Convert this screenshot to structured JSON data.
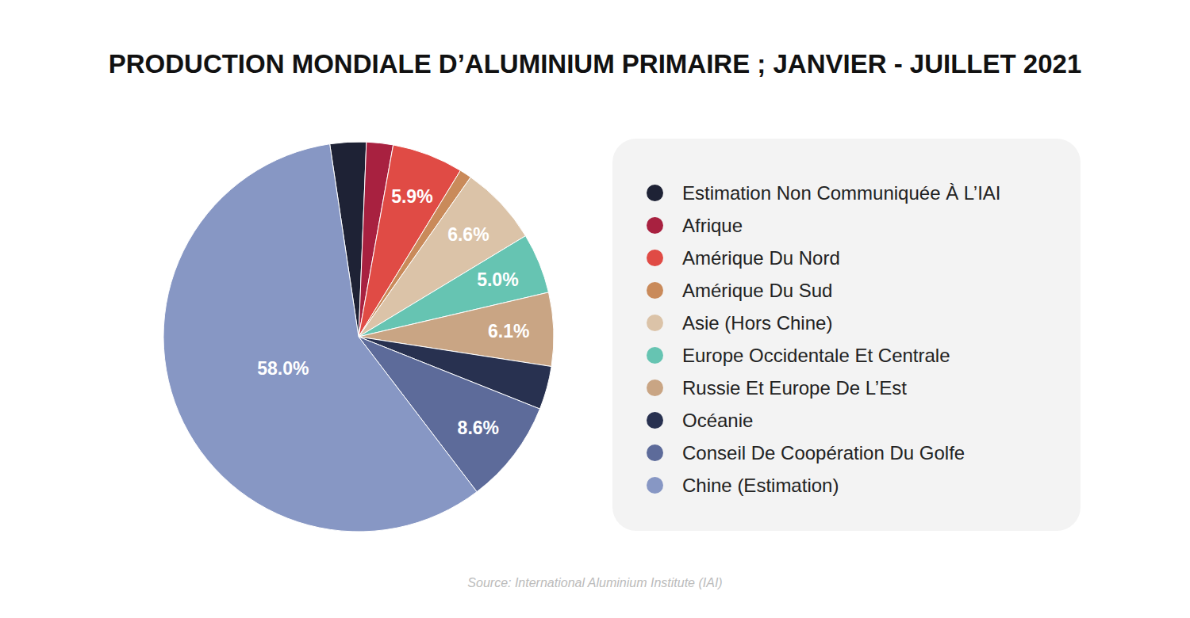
{
  "chart_data": {
    "type": "pie",
    "title": "PRODUCTION MONDIALE D’ALUMINIUM PRIMAIRE ; JANVIER - JUILLET 2021",
    "categories": [
      "Estimation Non Communiquée À L’IAI",
      "Afrique",
      "Amérique Du Nord",
      "Amérique Du Sud",
      "Asie (Hors Chine)",
      "Europe Occidentale Et Centrale",
      "Russie Et Europe De L’Est",
      "Océanie",
      "Conseil De Coopération Du Golfe",
      "Chine (Estimation)"
    ],
    "values": [
      3.0,
      2.2,
      5.9,
      1.0,
      6.6,
      5.0,
      6.1,
      3.6,
      8.6,
      58.0
    ],
    "value_labels": [
      null,
      null,
      "5.9%",
      null,
      "6.6%",
      "5.0%",
      "6.1%",
      null,
      "8.6%",
      "58.0%"
    ],
    "colors": [
      "#1e2235",
      "#a82140",
      "#e04b45",
      "#c98a5a",
      "#dbc3a8",
      "#66c4b2",
      "#c9a584",
      "#283150",
      "#5d6b9a",
      "#8797c4"
    ],
    "data_labels": true,
    "legend": "right",
    "annotation": "Source: International Aluminium Institute (IAI)"
  }
}
